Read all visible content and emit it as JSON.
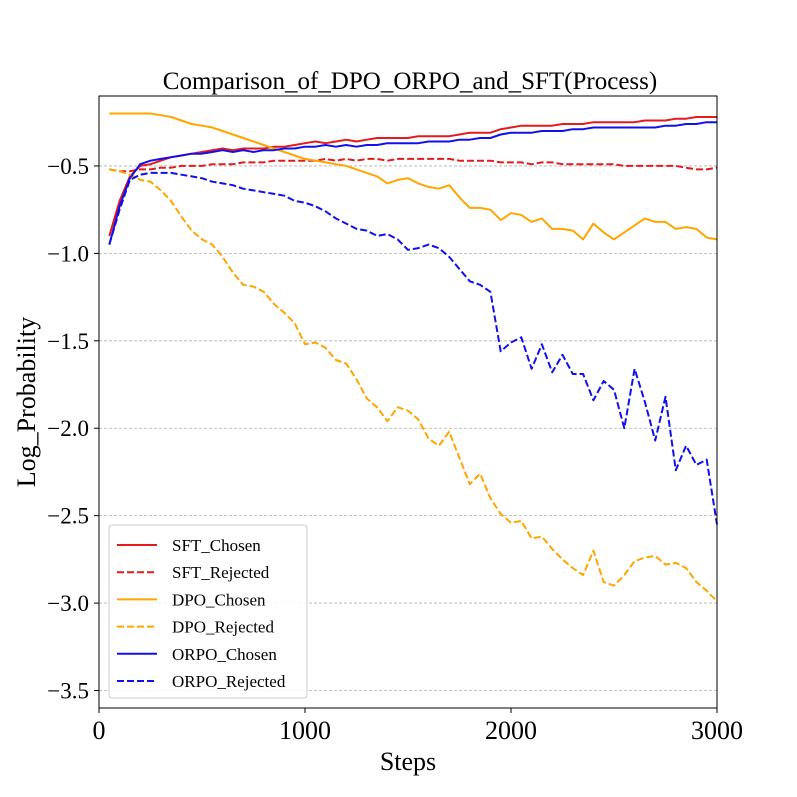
{
  "chart_data": {
    "type": "line",
    "title": "Comparison_of_DPO_ORPO_and_SFT(Process)",
    "xlabel": "Steps",
    "ylabel": "Log_Probability",
    "xlim": [
      0,
      3000
    ],
    "ylim": [
      -3.6,
      -0.1
    ],
    "xticks": [
      0,
      1000,
      2000,
      3000
    ],
    "xtick_labels": [
      "0",
      "1000",
      "2000",
      "3000"
    ],
    "yticks": [
      -0.5,
      -1.0,
      -1.5,
      -2.0,
      -2.5,
      -3.0,
      -3.5
    ],
    "ytick_labels": [
      "−0.5",
      "−1.0",
      "−1.5",
      "−2.0",
      "−2.5",
      "−3.0",
      "−3.5"
    ],
    "grid": "horizontal dashed",
    "legend_position": "lower-left",
    "x": [
      50,
      100,
      150,
      200,
      250,
      300,
      350,
      400,
      450,
      500,
      550,
      600,
      650,
      700,
      750,
      800,
      850,
      900,
      950,
      1000,
      1050,
      1100,
      1150,
      1200,
      1250,
      1300,
      1350,
      1400,
      1450,
      1500,
      1550,
      1600,
      1650,
      1700,
      1750,
      1800,
      1850,
      1900,
      1950,
      2000,
      2050,
      2100,
      2150,
      2200,
      2250,
      2300,
      2350,
      2400,
      2450,
      2500,
      2550,
      2600,
      2650,
      2700,
      2750,
      2800,
      2850,
      2900,
      2950,
      3000
    ],
    "series": [
      {
        "name": "SFT_Chosen",
        "color": "#e41a1c",
        "style": "solid",
        "values": [
          -0.9,
          -0.7,
          -0.56,
          -0.5,
          -0.49,
          -0.47,
          -0.45,
          -0.44,
          -0.43,
          -0.42,
          -0.41,
          -0.4,
          -0.41,
          -0.4,
          -0.4,
          -0.4,
          -0.39,
          -0.39,
          -0.38,
          -0.37,
          -0.36,
          -0.37,
          -0.36,
          -0.35,
          -0.36,
          -0.35,
          -0.34,
          -0.34,
          -0.34,
          -0.34,
          -0.33,
          -0.33,
          -0.33,
          -0.33,
          -0.32,
          -0.31,
          -0.31,
          -0.31,
          -0.29,
          -0.28,
          -0.27,
          -0.27,
          -0.27,
          -0.27,
          -0.26,
          -0.26,
          -0.26,
          -0.25,
          -0.25,
          -0.25,
          -0.25,
          -0.25,
          -0.24,
          -0.24,
          -0.24,
          -0.23,
          -0.23,
          -0.22,
          -0.22,
          -0.22
        ]
      },
      {
        "name": "SFT_Rejected",
        "color": "#e41a1c",
        "style": "dashed",
        "values": [
          -0.52,
          -0.53,
          -0.53,
          -0.52,
          -0.52,
          -0.51,
          -0.51,
          -0.5,
          -0.5,
          -0.5,
          -0.49,
          -0.49,
          -0.49,
          -0.48,
          -0.48,
          -0.48,
          -0.47,
          -0.47,
          -0.47,
          -0.47,
          -0.47,
          -0.46,
          -0.47,
          -0.46,
          -0.47,
          -0.46,
          -0.46,
          -0.47,
          -0.46,
          -0.46,
          -0.46,
          -0.46,
          -0.46,
          -0.46,
          -0.47,
          -0.47,
          -0.47,
          -0.47,
          -0.48,
          -0.48,
          -0.48,
          -0.49,
          -0.48,
          -0.48,
          -0.49,
          -0.49,
          -0.49,
          -0.49,
          -0.49,
          -0.49,
          -0.5,
          -0.5,
          -0.5,
          -0.5,
          -0.5,
          -0.5,
          -0.51,
          -0.52,
          -0.52,
          -0.51
        ]
      },
      {
        "name": "DPO_Chosen",
        "color": "#ffa500",
        "style": "solid",
        "values": [
          -0.2,
          -0.2,
          -0.2,
          -0.2,
          -0.2,
          -0.21,
          -0.22,
          -0.24,
          -0.26,
          -0.27,
          -0.28,
          -0.3,
          -0.32,
          -0.34,
          -0.36,
          -0.38,
          -0.4,
          -0.42,
          -0.44,
          -0.46,
          -0.47,
          -0.48,
          -0.49,
          -0.5,
          -0.52,
          -0.54,
          -0.56,
          -0.6,
          -0.58,
          -0.57,
          -0.6,
          -0.62,
          -0.63,
          -0.61,
          -0.68,
          -0.74,
          -0.74,
          -0.75,
          -0.81,
          -0.77,
          -0.78,
          -0.82,
          -0.8,
          -0.86,
          -0.86,
          -0.87,
          -0.92,
          -0.83,
          -0.88,
          -0.92,
          -0.88,
          -0.84,
          -0.8,
          -0.82,
          -0.82,
          -0.86,
          -0.85,
          -0.86,
          -0.91,
          -0.92
        ]
      },
      {
        "name": "DPO_Rejected",
        "color": "#ffa500",
        "style": "dashed",
        "values": [
          -0.52,
          -0.53,
          -0.55,
          -0.58,
          -0.59,
          -0.64,
          -0.7,
          -0.79,
          -0.87,
          -0.92,
          -0.95,
          -1.02,
          -1.11,
          -1.18,
          -1.19,
          -1.22,
          -1.29,
          -1.34,
          -1.4,
          -1.52,
          -1.51,
          -1.54,
          -1.61,
          -1.63,
          -1.72,
          -1.83,
          -1.88,
          -1.96,
          -1.88,
          -1.9,
          -1.95,
          -2.06,
          -2.1,
          -2.02,
          -2.17,
          -2.32,
          -2.26,
          -2.4,
          -2.49,
          -2.54,
          -2.53,
          -2.63,
          -2.62,
          -2.69,
          -2.75,
          -2.8,
          -2.84,
          -2.7,
          -2.88,
          -2.9,
          -2.84,
          -2.76,
          -2.74,
          -2.73,
          -2.78,
          -2.77,
          -2.8,
          -2.88,
          -2.93,
          -2.99
        ]
      },
      {
        "name": "ORPO_Chosen",
        "color": "#1010ee",
        "style": "solid",
        "values": [
          -0.95,
          -0.73,
          -0.57,
          -0.49,
          -0.47,
          -0.46,
          -0.45,
          -0.44,
          -0.43,
          -0.43,
          -0.42,
          -0.41,
          -0.42,
          -0.41,
          -0.42,
          -0.41,
          -0.41,
          -0.4,
          -0.4,
          -0.39,
          -0.39,
          -0.38,
          -0.39,
          -0.38,
          -0.39,
          -0.38,
          -0.38,
          -0.37,
          -0.37,
          -0.37,
          -0.37,
          -0.36,
          -0.36,
          -0.36,
          -0.35,
          -0.35,
          -0.34,
          -0.34,
          -0.32,
          -0.31,
          -0.31,
          -0.31,
          -0.3,
          -0.3,
          -0.3,
          -0.29,
          -0.29,
          -0.28,
          -0.28,
          -0.28,
          -0.28,
          -0.28,
          -0.28,
          -0.28,
          -0.27,
          -0.27,
          -0.26,
          -0.26,
          -0.25,
          -0.25
        ]
      },
      {
        "name": "ORPO_Rejected",
        "color": "#1010ee",
        "style": "dashed",
        "values": [
          -0.95,
          -0.75,
          -0.58,
          -0.55,
          -0.54,
          -0.54,
          -0.54,
          -0.55,
          -0.56,
          -0.57,
          -0.59,
          -0.6,
          -0.61,
          -0.63,
          -0.64,
          -0.65,
          -0.66,
          -0.67,
          -0.7,
          -0.71,
          -0.73,
          -0.76,
          -0.8,
          -0.83,
          -0.86,
          -0.87,
          -0.9,
          -0.89,
          -0.92,
          -0.98,
          -0.97,
          -0.95,
          -0.97,
          -1.02,
          -1.09,
          -1.16,
          -1.18,
          -1.22,
          -1.56,
          -1.51,
          -1.48,
          -1.66,
          -1.52,
          -1.68,
          -1.58,
          -1.69,
          -1.69,
          -1.84,
          -1.73,
          -1.78,
          -2.0,
          -1.66,
          -1.85,
          -2.07,
          -1.82,
          -2.24,
          -2.1,
          -2.21,
          -2.18,
          -2.55
        ]
      }
    ]
  }
}
